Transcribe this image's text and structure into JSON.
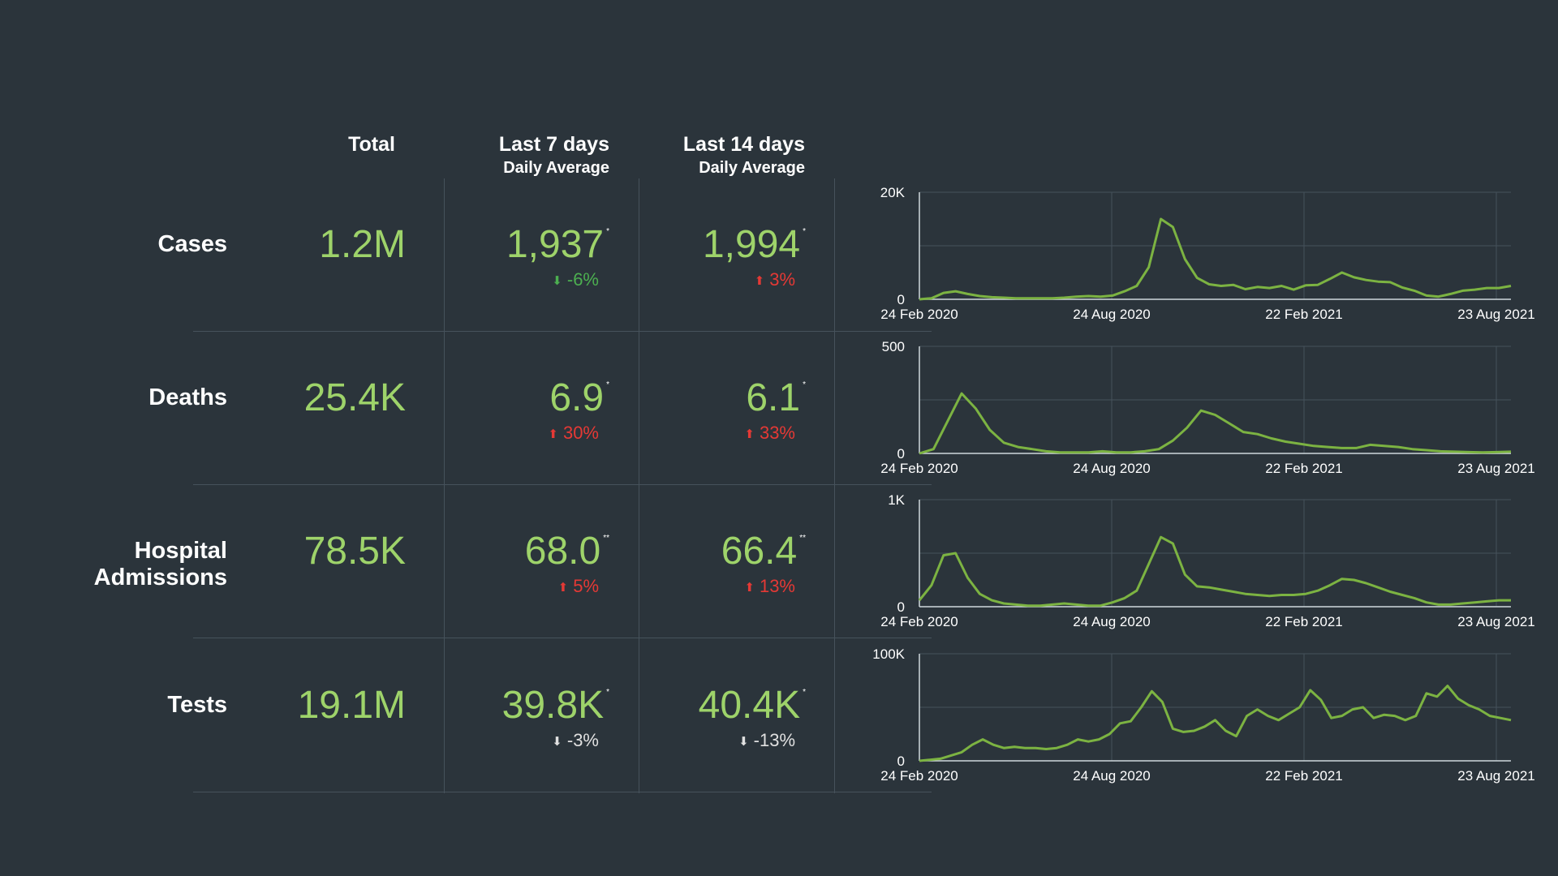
{
  "headers": {
    "total": "Total",
    "last7": "Last 7 days",
    "last7_sub": "Daily Average",
    "last14": "Last 14 days",
    "last14_sub": "Daily Average"
  },
  "rows": [
    {
      "label": "Cases",
      "total": "1.2M",
      "avg7": "1,937",
      "avg7_mark": "*",
      "chg7": "-6%",
      "chg7_dir": "down",
      "chg7_color": "#4caf50",
      "avg14": "1,994",
      "avg14_mark": "*",
      "chg14": "3%",
      "chg14_dir": "up",
      "chg14_color": "#e53935"
    },
    {
      "label": "Deaths",
      "total": "25.4K",
      "avg7": "6.9",
      "avg7_mark": "*",
      "chg7": "30%",
      "chg7_dir": "up",
      "chg7_color": "#e53935",
      "avg14": "6.1",
      "avg14_mark": "*",
      "chg14": "33%",
      "chg14_dir": "up",
      "chg14_color": "#e53935"
    },
    {
      "label": "Hospital Admissions",
      "total": "78.5K",
      "avg7": "68.0",
      "avg7_mark": "**",
      "chg7": "5%",
      "chg7_dir": "up",
      "chg7_color": "#e53935",
      "avg14": "66.4",
      "avg14_mark": "**",
      "chg14": "13%",
      "chg14_dir": "up",
      "chg14_color": "#e53935"
    },
    {
      "label": "Tests",
      "total": "19.1M",
      "avg7": "39.8K",
      "avg7_mark": "*",
      "chg7": "-3%",
      "chg7_dir": "down",
      "chg7_color": "#e0e0e0",
      "avg14": "40.4K",
      "avg14_mark": "*",
      "chg14": "-13%",
      "chg14_dir": "down",
      "chg14_color": "#e0e0e0"
    }
  ],
  "colors": {
    "background": "#2b343b",
    "value_green": "#9ed36a",
    "line_green": "#7cb342",
    "grid": "#46525b"
  },
  "icons": {
    "up": "arrow-up-icon",
    "down": "arrow-down-icon"
  },
  "chart_data": [
    {
      "type": "line",
      "series_for": "Cases",
      "x_tick_labels": [
        "24 Feb 2020",
        "24 Aug 2020",
        "22 Feb 2021",
        "23 Aug 2021"
      ],
      "y_tick_labels": [
        "0",
        "20K"
      ],
      "ylim": [
        0,
        20000
      ],
      "grid": true,
      "values": [
        0,
        200,
        1200,
        1500,
        1000,
        600,
        400,
        300,
        200,
        200,
        200,
        200,
        300,
        500,
        600,
        500,
        700,
        1500,
        2500,
        6000,
        15000,
        13500,
        7500,
        4000,
        2800,
        2500,
        2700,
        1900,
        2300,
        2100,
        2500,
        1800,
        2600,
        2700,
        3800,
        5000,
        4100,
        3600,
        3300,
        3200,
        2200,
        1600,
        700,
        500,
        1000,
        1600,
        1800,
        2100,
        2100,
        2500
      ]
    },
    {
      "type": "line",
      "series_for": "Deaths",
      "x_tick_labels": [
        "24 Feb 2020",
        "24 Aug 2020",
        "22 Feb 2021",
        "23 Aug 2021"
      ],
      "y_tick_labels": [
        "0",
        "500"
      ],
      "ylim": [
        0,
        500
      ],
      "grid": true,
      "values": [
        0,
        20,
        150,
        280,
        210,
        110,
        50,
        30,
        20,
        10,
        5,
        5,
        5,
        10,
        5,
        5,
        10,
        20,
        60,
        120,
        200,
        180,
        140,
        100,
        90,
        70,
        55,
        45,
        35,
        30,
        25,
        25,
        40,
        35,
        30,
        20,
        15,
        10,
        8,
        6,
        5,
        6,
        8
      ]
    },
    {
      "type": "line",
      "series_for": "Hospital Admissions",
      "x_tick_labels": [
        "24 Feb 2020",
        "24 Aug 2020",
        "22 Feb 2021",
        "23 Aug 2021"
      ],
      "y_tick_labels": [
        "0",
        "1K"
      ],
      "ylim": [
        0,
        1000
      ],
      "grid": true,
      "values": [
        60,
        200,
        480,
        500,
        270,
        120,
        60,
        30,
        20,
        10,
        10,
        20,
        30,
        20,
        10,
        10,
        40,
        80,
        150,
        400,
        650,
        590,
        300,
        190,
        180,
        160,
        140,
        120,
        110,
        100,
        110,
        110,
        120,
        150,
        200,
        260,
        250,
        220,
        180,
        140,
        110,
        80,
        40,
        20,
        20,
        30,
        40,
        50,
        60,
        60
      ]
    },
    {
      "type": "line",
      "series_for": "Tests",
      "x_tick_labels": [
        "24 Feb 2020",
        "24 Aug 2020",
        "22 Feb 2021",
        "23 Aug 2021"
      ],
      "y_tick_labels": [
        "0",
        "100K"
      ],
      "ylim": [
        0,
        100000
      ],
      "grid": true,
      "values": [
        0,
        1000,
        2000,
        5000,
        8000,
        15000,
        20000,
        15000,
        12000,
        13000,
        12000,
        12000,
        11000,
        12000,
        15000,
        20000,
        18000,
        20000,
        25000,
        35000,
        37000,
        50000,
        65000,
        55000,
        30000,
        27000,
        28000,
        32000,
        38000,
        28000,
        23000,
        42000,
        48000,
        42000,
        38000,
        44000,
        50000,
        66000,
        57000,
        40000,
        42000,
        48000,
        50000,
        40000,
        43000,
        42000,
        38000,
        42000,
        63000,
        60000,
        70000,
        58000,
        52000,
        48000,
        42000,
        40000,
        38000
      ]
    }
  ]
}
